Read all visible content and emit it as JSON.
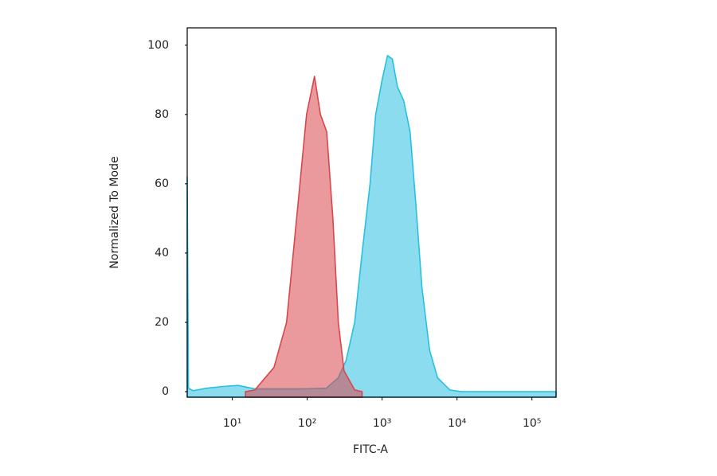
{
  "chart_data": {
    "type": "area",
    "xlabel": "FITC-A",
    "ylabel": "Normalized To Mode",
    "xscale": "log",
    "xlim": [
      2.5,
      210000
    ],
    "ylim": [
      -1.6,
      105
    ],
    "xticks": [
      {
        "value": 10,
        "label": "10¹"
      },
      {
        "value": 100,
        "label": "10²"
      },
      {
        "value": 1000,
        "label": "10³"
      },
      {
        "value": 10000,
        "label": "10⁴"
      },
      {
        "value": 100000,
        "label": "10⁵"
      }
    ],
    "yticks": [
      0,
      20,
      40,
      60,
      80,
      100
    ],
    "series": [
      {
        "color": "#29c0e0",
        "x": [
          2.5,
          2.6,
          3,
          4.6,
          7.5,
          12,
          20,
          41,
          86,
          180,
          260,
          330,
          430,
          540,
          690,
          820,
          1000,
          1180,
          1370,
          1600,
          1940,
          2360,
          2800,
          3400,
          4300,
          5500,
          8000,
          11500,
          210000
        ],
        "values": [
          62,
          1,
          0.3,
          1,
          1.5,
          1.8,
          0.8,
          0.8,
          0.8,
          1,
          4,
          9,
          20,
          40,
          60,
          80,
          90,
          97,
          96,
          88,
          84,
          75,
          55,
          30,
          12,
          4,
          0.5,
          0,
          0
        ]
      },
      {
        "color": "#d9464c",
        "x": [
          15,
          20,
          36,
          53,
          76,
          98,
          125,
          150,
          182,
          220,
          260,
          310,
          430,
          540
        ],
        "values": [
          0,
          0.5,
          7,
          20,
          55,
          80,
          91,
          80,
          75,
          50,
          20,
          6,
          0.5,
          0
        ]
      }
    ]
  }
}
